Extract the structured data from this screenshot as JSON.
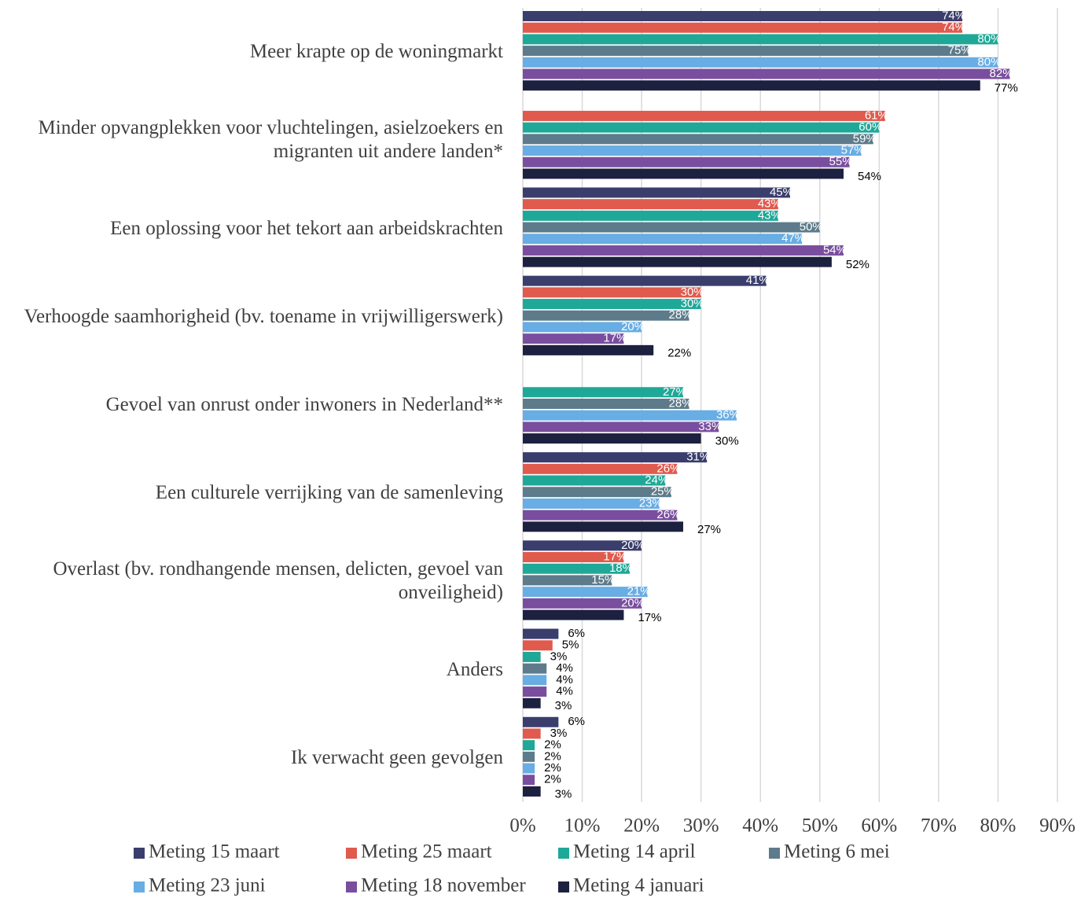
{
  "chart_data": {
    "type": "bar",
    "orientation": "horizontal",
    "categories": [
      "Meer krapte op de woningmarkt",
      "Minder opvangplekken voor vluchtelingen, asielzoekers en migranten uit andere landen*",
      "Een oplossing voor het tekort aan arbeidskrachten",
      "Verhoogde saamhorigheid (bv. toename in vrijwilligerswerk)",
      "Gevoel  van onrust onder inwoners in Nederland**",
      "Een culturele verrijking van de samenleving",
      "Overlast (bv. rondhangende mensen, delicten, gevoel van onveiligheid)",
      "Anders",
      "Ik verwacht geen gevolgen"
    ],
    "series": [
      {
        "name": "Meting 15 maart",
        "color": "#3a3e6c",
        "values": [
          74,
          null,
          45,
          41,
          null,
          31,
          20,
          6,
          6
        ],
        "value_labels": [
          "74%",
          null,
          "45%",
          "41%",
          null,
          "31%",
          "20%",
          "6%",
          "6%"
        ]
      },
      {
        "name": "Meting 25 maart",
        "color": "#e05a4e",
        "values": [
          74,
          61,
          43,
          30,
          null,
          26,
          17,
          5,
          3
        ],
        "value_labels": [
          "74%",
          "61%",
          "43%",
          "30%",
          null,
          "26%",
          "17%",
          "5%",
          "3%"
        ]
      },
      {
        "name": "Meting 14 april",
        "color": "#1fa898",
        "values": [
          80,
          60,
          43,
          30,
          27,
          24,
          18,
          3,
          2
        ],
        "value_labels": [
          "80%",
          "60%",
          "43%",
          "30%",
          "27%",
          "24%",
          "18%",
          "3%",
          "2%"
        ]
      },
      {
        "name": "Meting 6 mei",
        "color": "#5d7b8a",
        "values": [
          75,
          59,
          50,
          28,
          28,
          25,
          15,
          4,
          2
        ],
        "value_labels": [
          "75%",
          "59%",
          "50%",
          "28%",
          "28%",
          "25%",
          "15%",
          "4%",
          "2%"
        ]
      },
      {
        "name": "Meting 23 juni",
        "color": "#68ade4",
        "values": [
          80,
          57,
          47,
          20,
          36,
          23,
          21,
          4,
          2
        ],
        "value_labels": [
          "80%",
          "57%",
          "47%",
          "20%",
          "36%",
          "23%",
          "21%",
          "4%",
          "2%"
        ]
      },
      {
        "name": "Meting 18 november",
        "color": "#7a4e9e",
        "values": [
          82,
          55,
          54,
          17,
          33,
          26,
          20,
          4,
          2
        ],
        "value_labels": [
          "82%",
          "55%",
          "54%",
          "17%",
          "33%",
          "26%",
          "20%",
          "4%",
          "2%"
        ]
      },
      {
        "name": "Meting 4 januari",
        "color": "#1d2140",
        "values": [
          77,
          54,
          52,
          22,
          30,
          27,
          17,
          3,
          3
        ],
        "value_labels": [
          "77%",
          "54%",
          "52%",
          "22%",
          "30%",
          "27%",
          "17%",
          "3%",
          "3%"
        ]
      }
    ],
    "xlim": [
      0,
      90
    ],
    "xticks": [
      {
        "value": 0,
        "label": "0%"
      },
      {
        "value": 10,
        "label": "10%"
      },
      {
        "value": 20,
        "label": "20%"
      },
      {
        "value": 30,
        "label": "30%"
      },
      {
        "value": 40,
        "label": "40%"
      },
      {
        "value": 50,
        "label": "50%"
      },
      {
        "value": 60,
        "label": "60%"
      },
      {
        "value": 70,
        "label": "70%"
      },
      {
        "value": 80,
        "label": "80%"
      },
      {
        "value": 90,
        "label": "90%"
      }
    ],
    "grid": true,
    "legend": "bottom"
  }
}
